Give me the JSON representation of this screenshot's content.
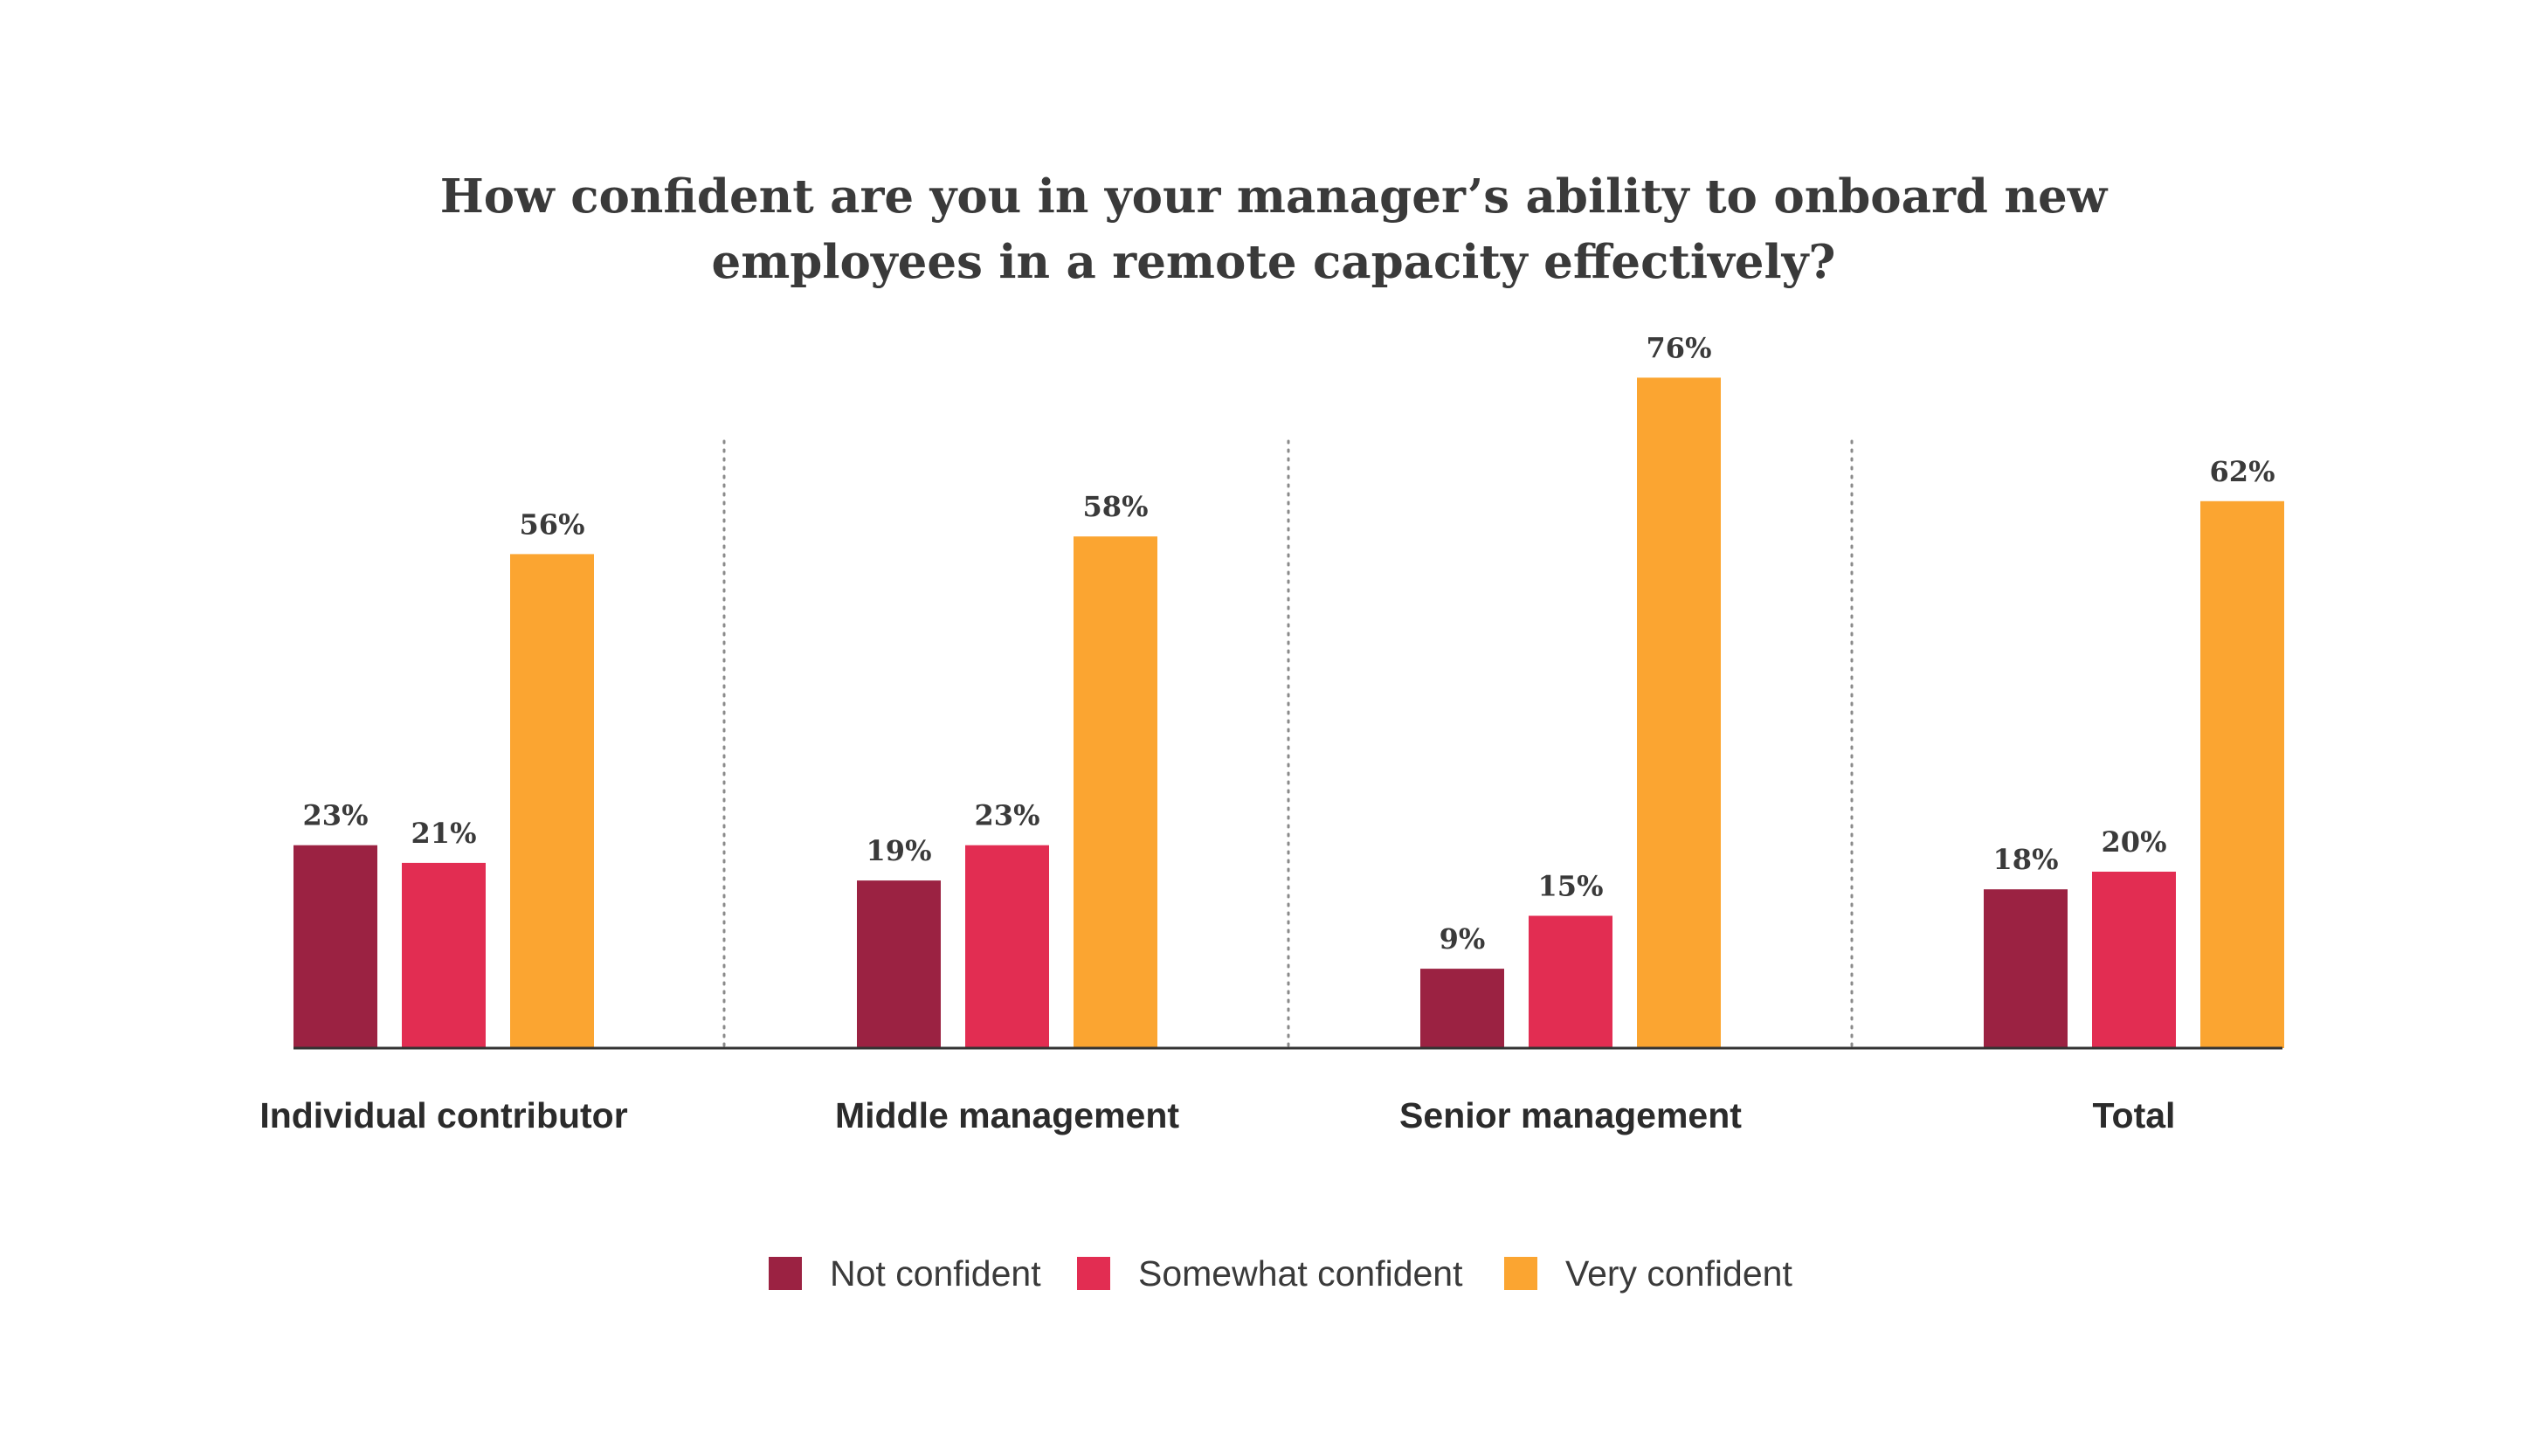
{
  "chart_data": {
    "type": "bar",
    "title_lines": [
      "How confident are you in your manager’s ability to onboard new",
      "employees in a remote capacity effectively?"
    ],
    "categories": [
      "Individual contributor",
      "Middle management",
      "Senior management",
      "Total"
    ],
    "series": [
      {
        "name": "Not confident",
        "color": "#9b2242",
        "values": [
          23,
          19,
          9,
          18
        ]
      },
      {
        "name": "Somewhat confident",
        "color": "#e22d52",
        "values": [
          21,
          23,
          15,
          20
        ]
      },
      {
        "name": "Very confident",
        "color": "#fba531",
        "values": [
          56,
          58,
          76,
          62
        ]
      }
    ],
    "value_suffix": "%",
    "ylim": [
      0,
      80
    ],
    "grid": false,
    "group_separators": "dotted",
    "legend_position": "bottom-center",
    "xlabel": "",
    "ylabel": ""
  }
}
